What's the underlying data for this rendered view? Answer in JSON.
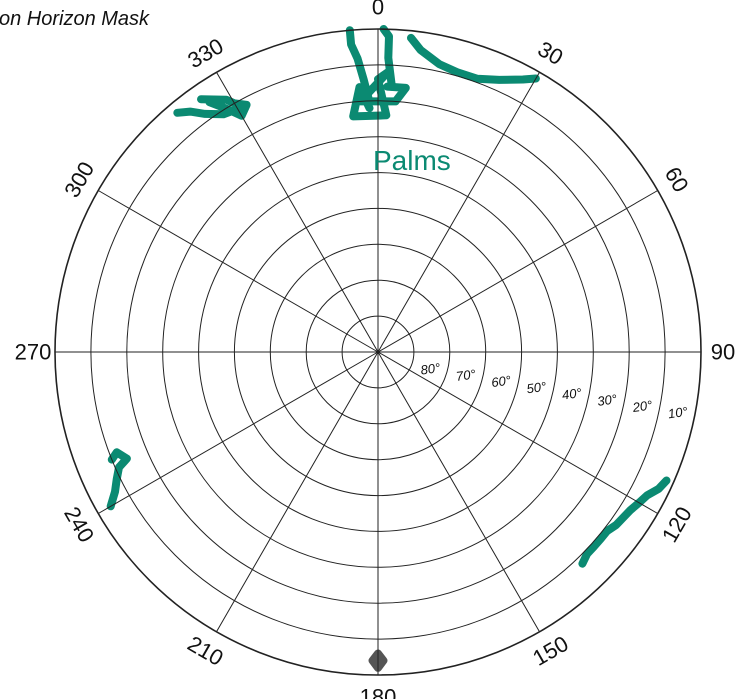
{
  "chart_data": {
    "type": "polar",
    "title": "on Horizon Mask",
    "azimuth_ticks": [
      "0",
      "30",
      "60",
      "90",
      "120",
      "150",
      "180",
      "210",
      "240",
      "270",
      "300",
      "330"
    ],
    "elevation_ticks": [
      "80°",
      "70°",
      "60°",
      "50°",
      "40°",
      "30°",
      "20°",
      "10°"
    ],
    "elevation_rings": [
      80,
      70,
      60,
      50,
      40,
      30,
      20,
      10,
      0
    ],
    "grid": true,
    "annotations": [
      {
        "text": "Palms",
        "color": "#0b8a72"
      }
    ],
    "series": [
      {
        "color": "#0b8a72",
        "points": [
          [
            358,
            20
          ],
          [
            357,
            14
          ],
          [
            356,
            8
          ],
          [
            355,
            4
          ],
          [
            355,
            0
          ]
        ]
      },
      {
        "color": "#0b8a72",
        "points": [
          [
            3,
            16
          ],
          [
            2,
            8
          ],
          [
            2,
            2
          ],
          [
            1,
            0
          ]
        ]
      },
      {
        "color": "#0b8a72",
        "points": [
          [
            2,
            16
          ],
          [
            6,
            16
          ],
          [
            4,
            20
          ],
          [
            356,
            20
          ],
          [
            2,
            12
          ],
          [
            0,
            14
          ],
          [
            2,
            24
          ],
          [
            354,
            24
          ],
          [
            356,
            16
          ],
          [
            358,
            22
          ]
        ]
      },
      {
        "color": "#0b8a72",
        "points": [
          [
            6,
            2
          ],
          [
            8,
            5
          ],
          [
            12,
            8
          ],
          [
            16,
            9
          ],
          [
            20,
            9
          ],
          [
            24,
            7
          ],
          [
            28,
            4
          ],
          [
            30,
            2
          ]
        ]
      },
      {
        "color": "#0b8a72",
        "points": [
          [
            326,
            6
          ],
          [
            328,
            10
          ],
          [
            330,
            14
          ],
          [
            332,
            12
          ],
          [
            330,
            10
          ],
          [
            329,
            8
          ],
          [
            325,
            4
          ]
        ]
      },
      {
        "color": "#0b8a72",
        "points": [
          [
            320,
            3
          ],
          [
            322,
            5
          ],
          [
            324,
            8
          ],
          [
            327,
            11
          ],
          [
            331,
            12
          ]
        ]
      },
      {
        "color": "#0b8a72",
        "points": [
          [
            114,
            2
          ],
          [
            116,
            3
          ],
          [
            118,
            5
          ],
          [
            120,
            6
          ],
          [
            122,
            7
          ],
          [
            126,
            8
          ],
          [
            128,
            9
          ],
          [
            130,
            9
          ],
          [
            132,
            9
          ],
          [
            134,
            9
          ],
          [
            136,
            8
          ]
        ]
      },
      {
        "color": "#0b8a72",
        "points": [
          [
            240,
            4
          ],
          [
            242,
            7
          ],
          [
            244,
            9
          ],
          [
            246,
            11
          ],
          [
            247,
            14
          ],
          [
            249,
            12
          ],
          [
            248,
            10
          ]
        ]
      },
      {
        "color": "#555555",
        "points": [
          [
            180,
            2
          ],
          [
            179,
            4
          ],
          [
            180,
            6
          ],
          [
            181,
            4
          ],
          [
            180,
            2
          ]
        ]
      }
    ]
  }
}
